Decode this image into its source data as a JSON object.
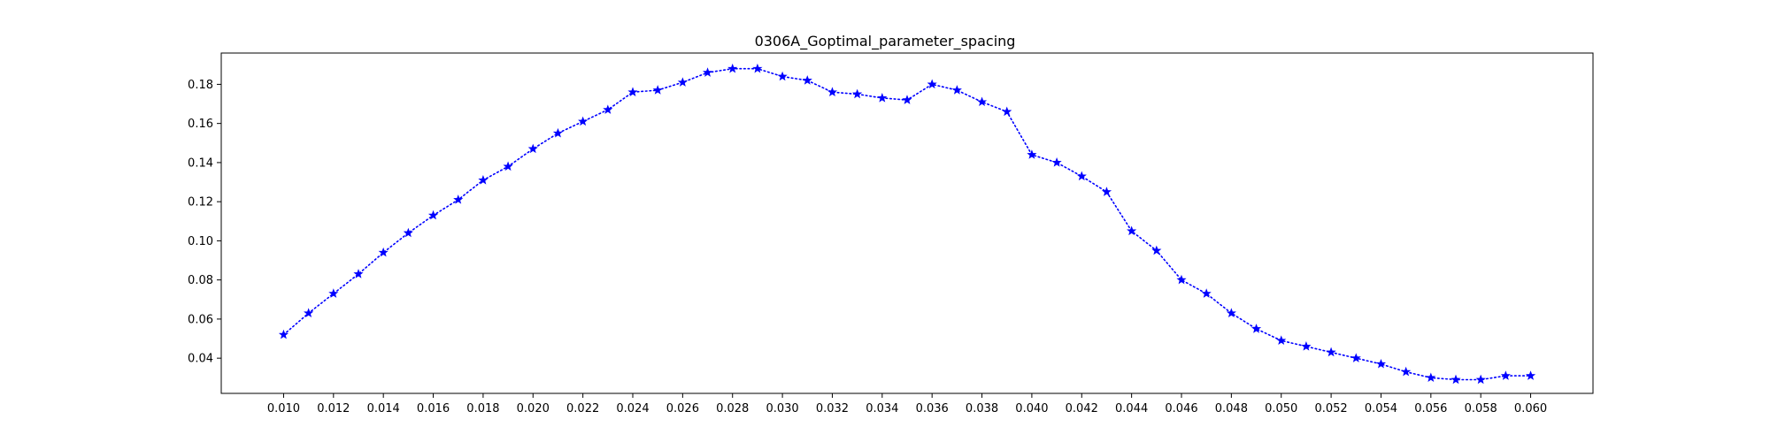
{
  "chart_data": {
    "type": "line",
    "title": "0306A_Goptimal_parameter_spacing",
    "xlabel": "",
    "ylabel": "",
    "xlim": [
      0.0075,
      0.0625
    ],
    "ylim": [
      0.022,
      0.196
    ],
    "x_ticks": [
      0.01,
      0.012,
      0.014,
      0.016,
      0.018,
      0.02,
      0.022,
      0.024,
      0.026,
      0.028,
      0.03,
      0.032,
      0.034,
      0.036,
      0.038,
      0.04,
      0.042,
      0.044,
      0.046,
      0.048,
      0.05,
      0.052,
      0.054,
      0.056,
      0.058,
      0.06
    ],
    "x_tick_labels": [
      "0.010",
      "0.012",
      "0.014",
      "0.016",
      "0.018",
      "0.020",
      "0.022",
      "0.024",
      "0.026",
      "0.028",
      "0.030",
      "0.032",
      "0.034",
      "0.036",
      "0.038",
      "0.040",
      "0.042",
      "0.044",
      "0.046",
      "0.048",
      "0.050",
      "0.052",
      "0.054",
      "0.056",
      "0.058",
      "0.060"
    ],
    "y_ticks": [
      0.04,
      0.06,
      0.08,
      0.1,
      0.12,
      0.14,
      0.16,
      0.18
    ],
    "y_tick_labels": [
      "0.04",
      "0.06",
      "0.08",
      "0.10",
      "0.12",
      "0.14",
      "0.16",
      "0.18"
    ],
    "grid": false,
    "line_style": "dotted",
    "marker": "star",
    "color": "#0000ff",
    "series": [
      {
        "x": [
          0.01,
          0.011,
          0.012,
          0.013,
          0.014,
          0.015,
          0.016,
          0.017,
          0.018,
          0.019,
          0.02,
          0.021,
          0.022,
          0.023,
          0.024,
          0.025,
          0.026,
          0.027,
          0.028,
          0.029,
          0.03,
          0.031,
          0.032,
          0.033,
          0.034,
          0.035,
          0.036,
          0.037,
          0.038,
          0.039,
          0.04,
          0.041,
          0.042,
          0.043,
          0.044,
          0.045,
          0.046,
          0.047,
          0.048,
          0.049,
          0.05,
          0.051,
          0.052,
          0.053,
          0.054,
          0.055,
          0.056,
          0.057,
          0.058,
          0.059,
          0.06
        ],
        "y": [
          0.052,
          0.063,
          0.073,
          0.083,
          0.094,
          0.104,
          0.113,
          0.121,
          0.131,
          0.138,
          0.147,
          0.155,
          0.161,
          0.167,
          0.176,
          0.177,
          0.181,
          0.186,
          0.188,
          0.188,
          0.184,
          0.182,
          0.176,
          0.175,
          0.173,
          0.172,
          0.18,
          0.177,
          0.171,
          0.166,
          0.144,
          0.14,
          0.133,
          0.125,
          0.105,
          0.095,
          0.08,
          0.073,
          0.063,
          0.055,
          0.049,
          0.046,
          0.043,
          0.04,
          0.037,
          0.033,
          0.03,
          0.029,
          0.029,
          0.031,
          0.031
        ]
      }
    ]
  }
}
